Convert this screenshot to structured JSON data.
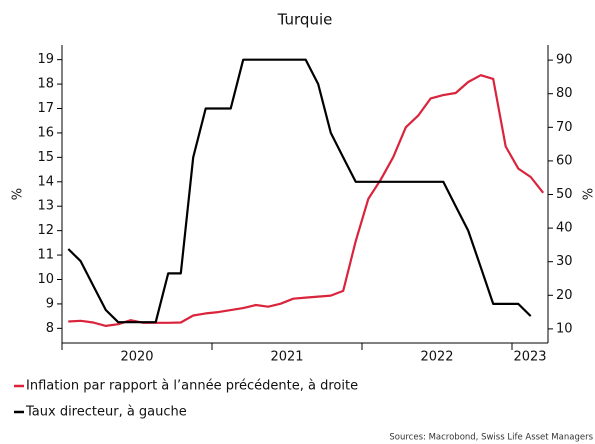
{
  "chart_data": {
    "type": "line",
    "title": "Turquie",
    "ylabel": "%",
    "y2label": "%",
    "source": "Sources: Macrobond, Swiss Life Asset Managers",
    "x": [
      2020.042,
      2020.125,
      2020.208,
      2020.292,
      2020.375,
      2020.458,
      2020.542,
      2020.625,
      2020.708,
      2020.792,
      2020.875,
      2020.958,
      2021.042,
      2021.125,
      2021.208,
      2021.292,
      2021.375,
      2021.458,
      2021.542,
      2021.625,
      2021.708,
      2021.792,
      2021.875,
      2021.958,
      2022.042,
      2022.125,
      2022.208,
      2022.292,
      2022.375,
      2022.458,
      2022.542,
      2022.625,
      2022.708,
      2022.792,
      2022.875,
      2022.958,
      2023.042,
      2023.125,
      2023.208
    ],
    "xlim": [
      2020,
      2023.24
    ],
    "xticks": [
      2020,
      2021,
      2022,
      2023
    ],
    "ylim": [
      7.4,
      19.6
    ],
    "yticks": [
      8,
      9,
      10,
      11,
      12,
      13,
      14,
      15,
      16,
      17,
      18,
      19
    ],
    "y2lim": [
      5.8,
      94.5
    ],
    "y2ticks": [
      10,
      20,
      30,
      40,
      50,
      60,
      70,
      80,
      90
    ],
    "series": [
      {
        "name": "Inflation par rapport à l’année précédente, à droite",
        "color": "#d9243c",
        "axis": "y2",
        "values": [
          12.2,
          12.4,
          11.9,
          10.9,
          11.4,
          12.6,
          11.8,
          11.8,
          11.8,
          11.9,
          14.0,
          14.6,
          15.0,
          15.6,
          16.2,
          17.1,
          16.6,
          17.5,
          19.0,
          19.3,
          19.6,
          19.9,
          21.3,
          36.1,
          48.7,
          54.4,
          61.1,
          70.0,
          73.5,
          78.6,
          79.6,
          80.2,
          83.5,
          85.5,
          84.4,
          64.3,
          57.7,
          55.2,
          50.5
        ]
      },
      {
        "name": "Taux directeur, à gauche",
        "color": "#000000",
        "axis": "y",
        "values": [
          11.25,
          10.75,
          9.75,
          8.75,
          8.25,
          8.25,
          8.25,
          8.25,
          10.25,
          10.25,
          15,
          17,
          17,
          17,
          19,
          19,
          19,
          19,
          19,
          19,
          18,
          16,
          15,
          14,
          14,
          14,
          14,
          14,
          14,
          14,
          14,
          13,
          12,
          10.5,
          9,
          9,
          9,
          8.5,
          null
        ]
      }
    ]
  }
}
